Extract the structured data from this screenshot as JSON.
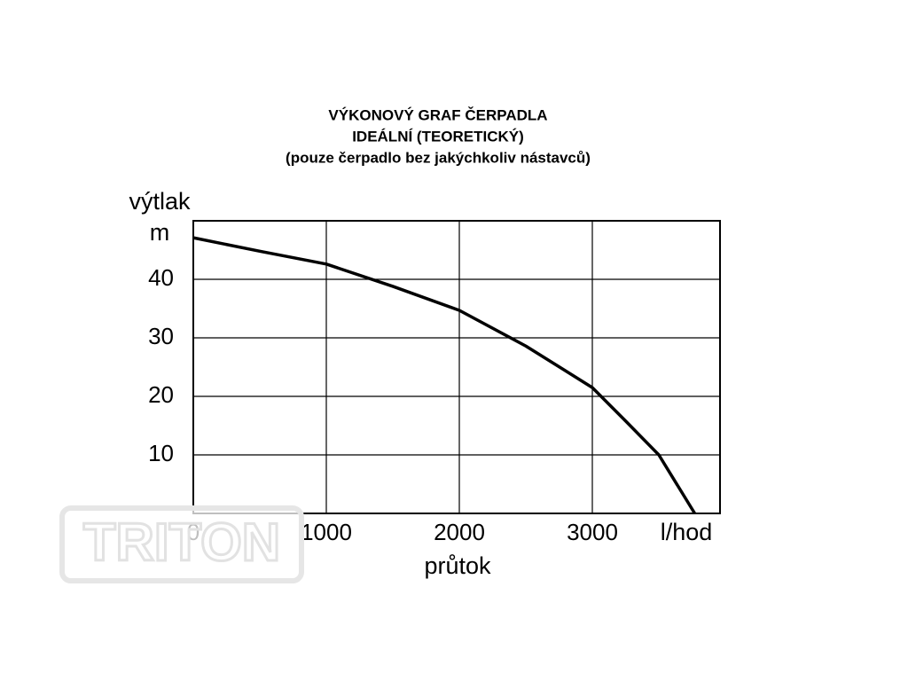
{
  "chart_data": {
    "type": "line",
    "title_lines": [
      "VÝKONOVÝ GRAF ČERPADLA",
      "IDEÁLNÍ (TEORETICKÝ)",
      "(pouze čerpadlo bez jakýchkoliv nástavců)"
    ],
    "y_label": "výtlak",
    "y_unit": "m",
    "x_label": "průtok",
    "x_unit": "l/hod",
    "watermark": "TRITON",
    "x": [
      0,
      500,
      1000,
      1500,
      2000,
      2500,
      3000,
      3250,
      3500,
      3770
    ],
    "series": [
      {
        "color": "#000000",
        "values": [
          47.1,
          44.8,
          42.6,
          38.8,
          34.7,
          28.6,
          21.5,
          15.8,
          10,
          0
        ]
      }
    ],
    "xlim": [
      0,
      3960
    ],
    "ylim": [
      0,
      50
    ],
    "xticks": [
      0,
      1000,
      2000,
      3000
    ],
    "yticks": [
      10,
      20,
      30,
      40
    ],
    "grid": true
  }
}
